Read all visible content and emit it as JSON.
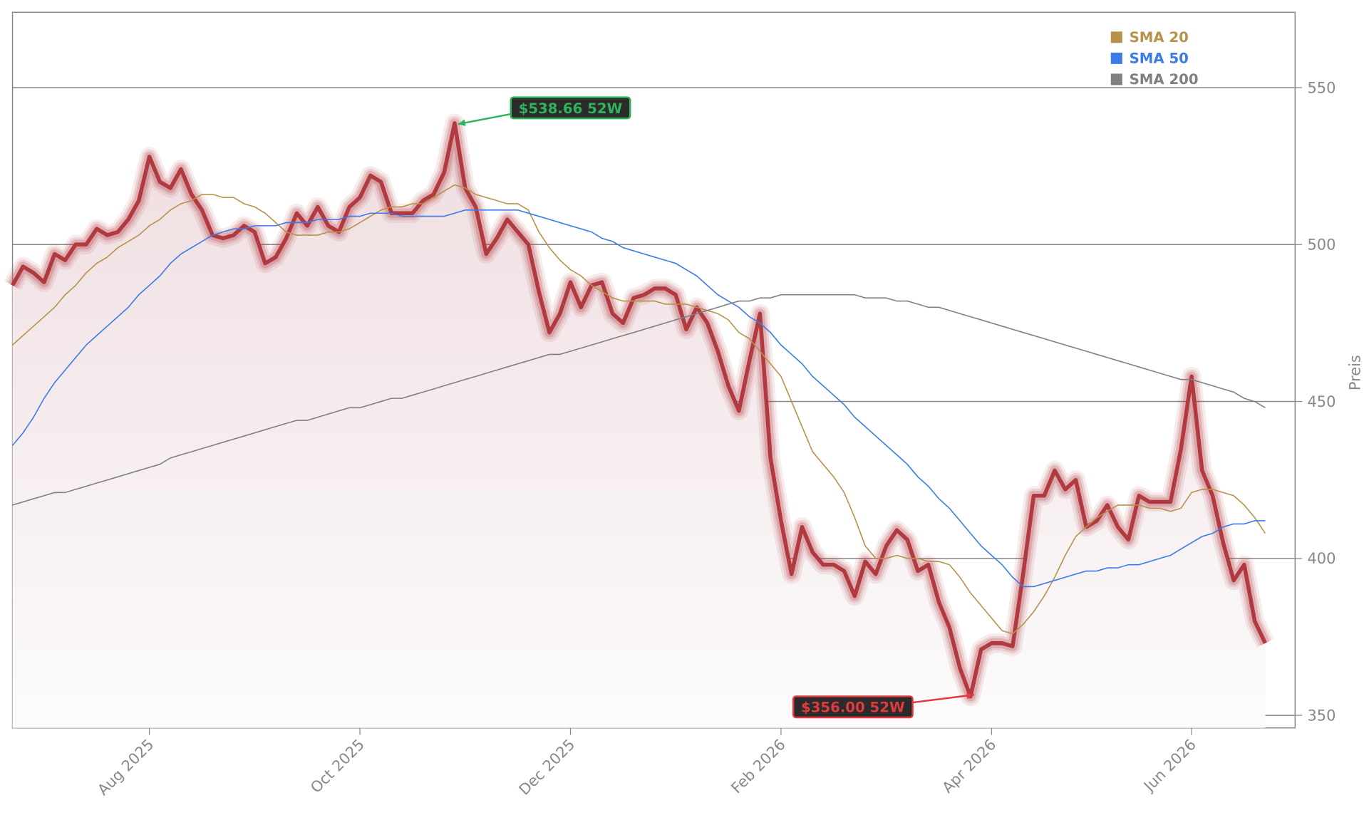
{
  "chart_data": {
    "type": "line",
    "categories": [
      null,
      null,
      null,
      null,
      null,
      null,
      null,
      null,
      null,
      null,
      null,
      null,
      null,
      "Aug 2025",
      null,
      null,
      null,
      null,
      null,
      null,
      null,
      null,
      null,
      null,
      null,
      null,
      null,
      null,
      null,
      null,
      null,
      null,
      null,
      "Oct 2025",
      null,
      null,
      null,
      null,
      null,
      null,
      null,
      null,
      null,
      null,
      null,
      null,
      null,
      null,
      null,
      null,
      null,
      null,
      null,
      "Dec 2025",
      null,
      null,
      null,
      null,
      null,
      null,
      null,
      null,
      null,
      null,
      null,
      null,
      null,
      null,
      null,
      null,
      null,
      null,
      null,
      "Feb 2026",
      null,
      null,
      null,
      null,
      null,
      null,
      null,
      null,
      null,
      null,
      null,
      null,
      null,
      null,
      null,
      null,
      null,
      null,
      null,
      "Apr 2026",
      null,
      null,
      null,
      null,
      null,
      null,
      null,
      null,
      null,
      null,
      null,
      null,
      null,
      null,
      null,
      null,
      null,
      null,
      "Jun 2026",
      null,
      null,
      null,
      null,
      null,
      null,
      null
    ],
    "series": [
      {
        "color": "#b03a40",
        "values": [
          487,
          493,
          491,
          488,
          497,
          495,
          500,
          500,
          505,
          503,
          504,
          508,
          514,
          528,
          520,
          518,
          524,
          516,
          511,
          503,
          502,
          503,
          506,
          504,
          494,
          496,
          502,
          510,
          506,
          512,
          506,
          504,
          512,
          515,
          522,
          520,
          510,
          510,
          510,
          514,
          516,
          523,
          538.66,
          518,
          512,
          497,
          502,
          508,
          504,
          500,
          485,
          472,
          478,
          488,
          480,
          487,
          488,
          478,
          475,
          483,
          484,
          486,
          486,
          484,
          473,
          480,
          475,
          466,
          455,
          447,
          463,
          478,
          432,
          412,
          395,
          410,
          402,
          398,
          398,
          396,
          388,
          399,
          395,
          404,
          409,
          406,
          396,
          398,
          386,
          378,
          365,
          356.0,
          371,
          373,
          373,
          372,
          395,
          420,
          420,
          428,
          422,
          425,
          410,
          412,
          417,
          410,
          406,
          420,
          418,
          418,
          418,
          435,
          458,
          428,
          420,
          405,
          393,
          398,
          380,
          373
        ]
      },
      {
        "name": "SMA 20",
        "color": "#b8924a",
        "values": [
          468,
          471,
          474,
          477,
          480,
          484,
          487,
          491,
          494,
          496,
          499,
          501,
          503,
          506,
          508,
          511,
          513,
          514,
          516,
          516,
          515,
          515,
          513,
          512,
          510,
          507,
          504,
          503,
          503,
          503,
          504,
          504,
          505,
          507,
          509,
          511,
          512,
          512,
          513,
          513,
          515,
          517,
          519,
          518,
          516,
          515,
          514,
          513,
          513,
          511,
          504,
          499,
          495,
          492,
          490,
          487,
          485,
          483,
          482,
          482,
          482,
          482,
          481,
          481,
          481,
          480,
          479,
          478,
          476,
          472,
          470,
          466,
          462,
          458,
          450,
          442,
          434,
          430,
          426,
          421,
          413,
          404,
          400,
          400,
          401,
          400,
          400,
          399,
          399,
          398,
          394,
          389,
          385,
          381,
          377,
          376,
          379,
          383,
          388,
          394,
          401,
          407,
          410,
          413,
          415,
          417,
          417,
          417,
          416,
          416,
          415,
          416,
          421,
          422,
          422,
          421,
          420,
          417,
          413,
          408
        ]
      },
      {
        "name": "SMA 50",
        "color": "#3b7be8",
        "values": [
          436,
          440,
          445,
          451,
          456,
          460,
          464,
          468,
          471,
          474,
          477,
          480,
          484,
          487,
          490,
          494,
          497,
          499,
          501,
          503,
          504,
          505,
          505,
          506,
          506,
          506,
          507,
          507,
          507,
          508,
          508,
          508,
          509,
          509,
          510,
          510,
          510,
          509,
          509,
          509,
          509,
          509,
          510,
          511,
          511,
          511,
          511,
          511,
          511,
          510,
          509,
          508,
          507,
          506,
          505,
          504,
          502,
          501,
          499,
          498,
          497,
          496,
          495,
          494,
          492,
          490,
          487,
          484,
          482,
          480,
          477,
          475,
          472,
          468,
          465,
          462,
          458,
          455,
          452,
          449,
          445,
          442,
          439,
          436,
          433,
          430,
          426,
          423,
          419,
          416,
          412,
          408,
          404,
          401,
          398,
          394,
          391,
          391,
          392,
          393,
          394,
          395,
          396,
          396,
          397,
          397,
          398,
          398,
          399,
          400,
          401,
          403,
          405,
          407,
          408,
          410,
          411,
          411,
          412,
          412
        ]
      },
      {
        "name": "SMA 200",
        "color": "#808080",
        "values": [
          417,
          418,
          419,
          420,
          421,
          421,
          422,
          423,
          424,
          425,
          426,
          427,
          428,
          429,
          430,
          432,
          433,
          434,
          435,
          436,
          437,
          438,
          439,
          440,
          441,
          442,
          443,
          444,
          444,
          445,
          446,
          447,
          448,
          448,
          449,
          450,
          451,
          451,
          452,
          453,
          454,
          455,
          456,
          457,
          458,
          459,
          460,
          461,
          462,
          463,
          464,
          465,
          465,
          466,
          467,
          468,
          469,
          470,
          471,
          472,
          473,
          474,
          475,
          476,
          477,
          478,
          479,
          480,
          481,
          482,
          482,
          483,
          483,
          484,
          484,
          484,
          484,
          484,
          484,
          484,
          484,
          483,
          483,
          483,
          482,
          482,
          481,
          480,
          480,
          479,
          478,
          477,
          476,
          475,
          474,
          473,
          472,
          471,
          470,
          469,
          468,
          467,
          466,
          465,
          464,
          463,
          462,
          461,
          460,
          459,
          458,
          457,
          457,
          456,
          455,
          454,
          453,
          451,
          450,
          448
        ]
      }
    ],
    "ylabel": "Preis",
    "ylim": [
      346,
      574
    ],
    "yticks": [
      350,
      400,
      450,
      500,
      550
    ],
    "grid": true,
    "legend": "upper right",
    "annotations": [
      {
        "text": "$538.66 52W",
        "color": "#2db35a"
      },
      {
        "text": "$356.00 52W",
        "color": "#e0393e"
      }
    ]
  }
}
